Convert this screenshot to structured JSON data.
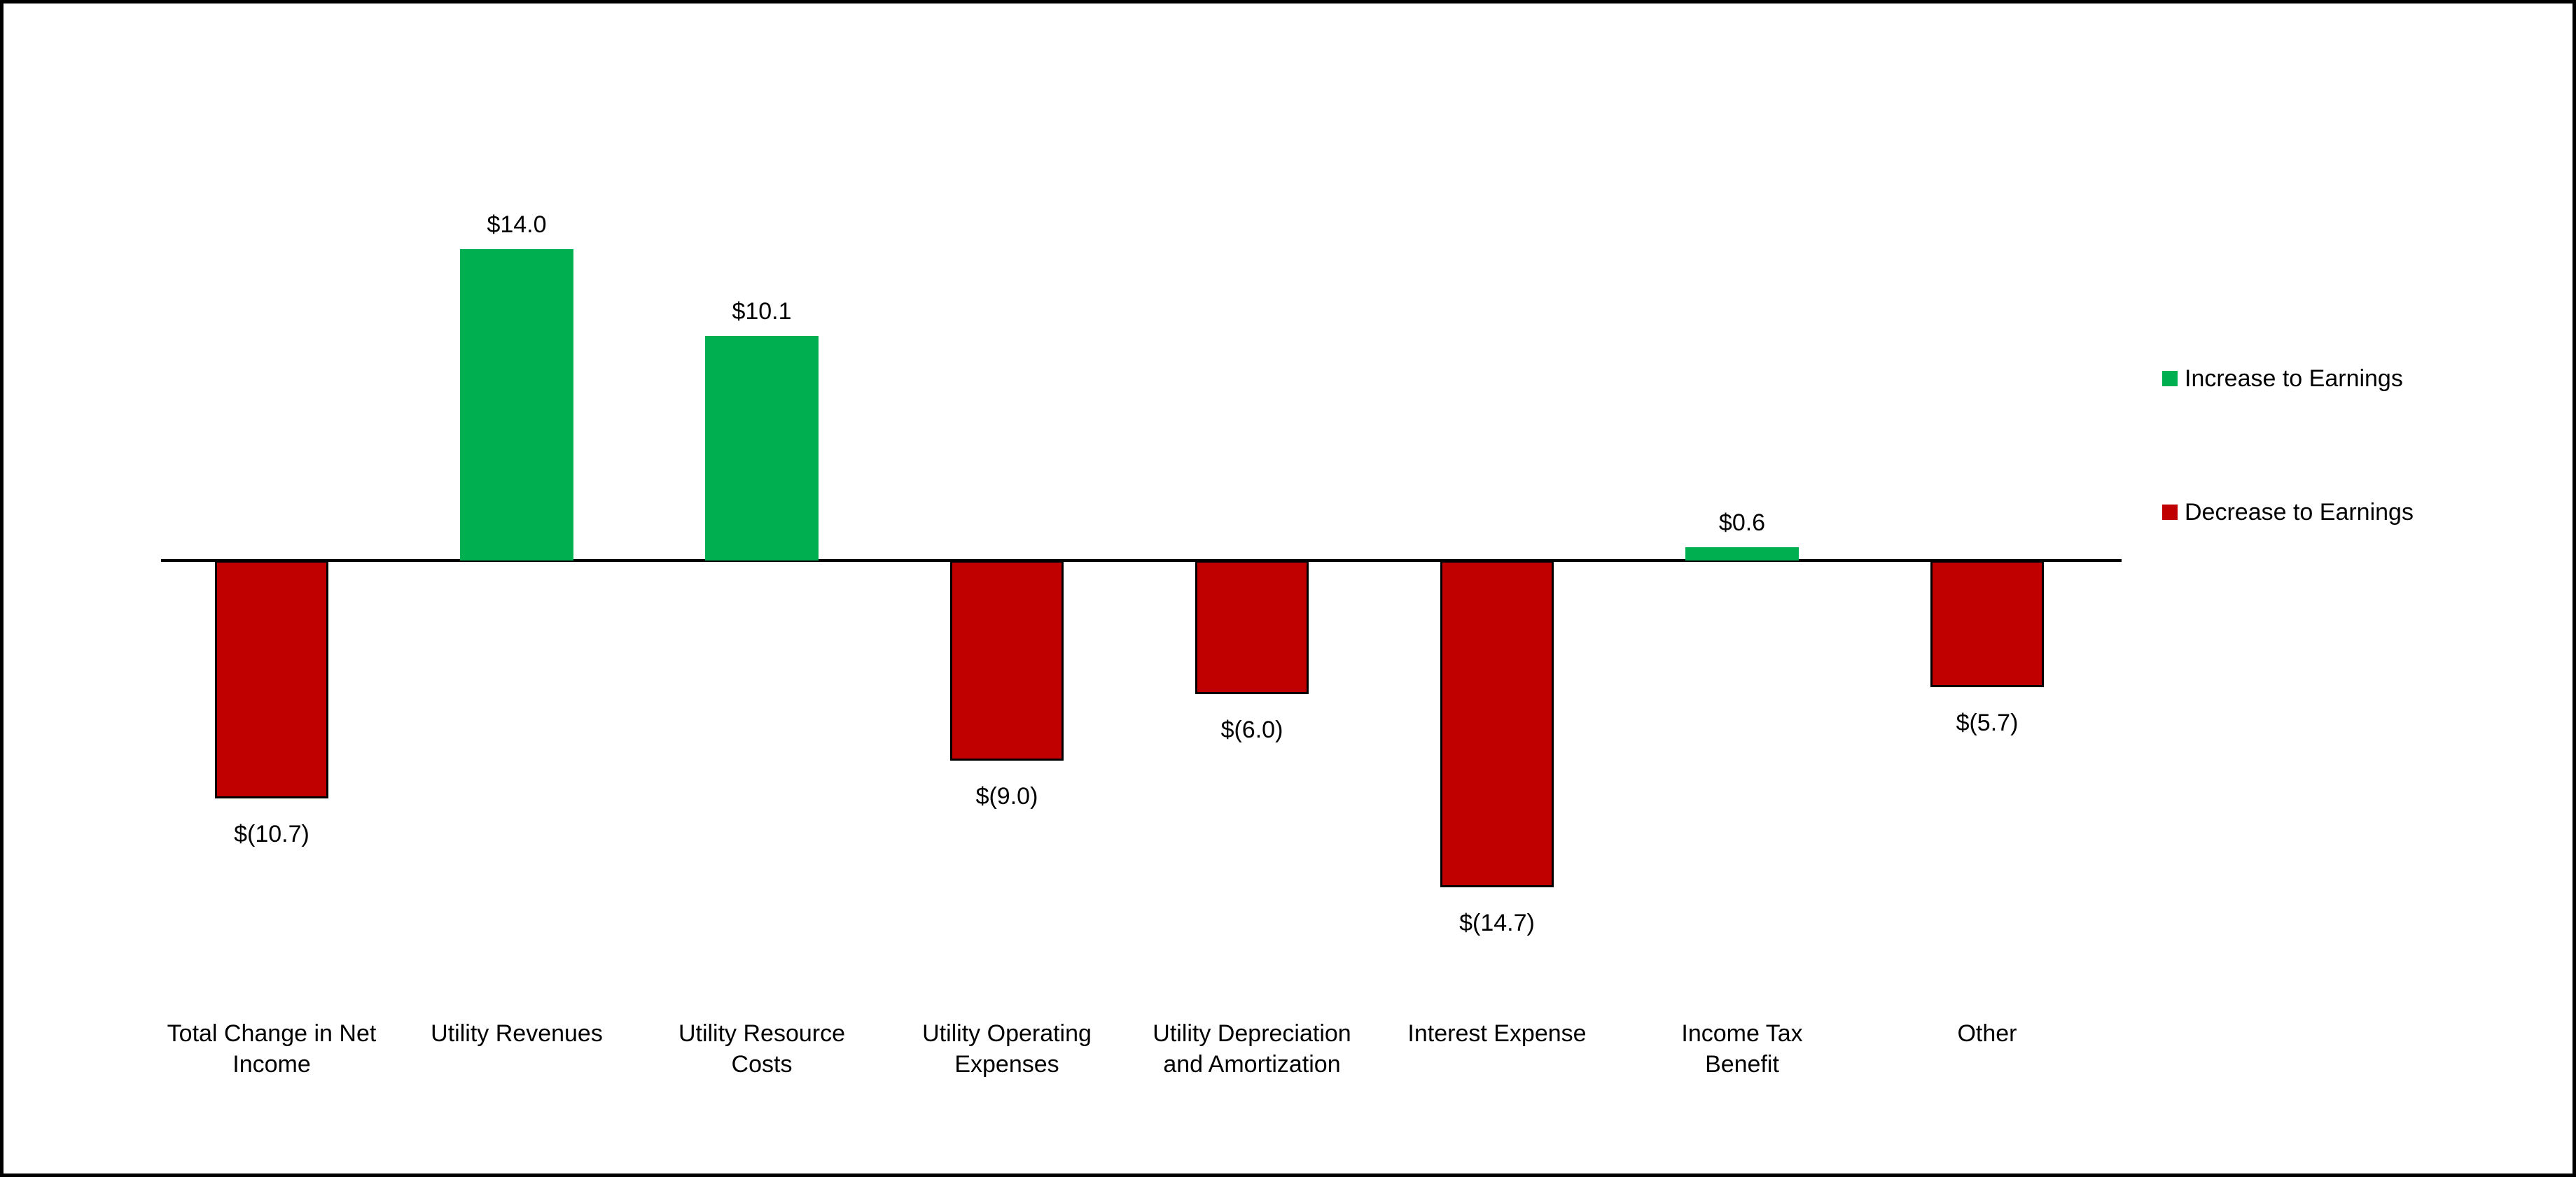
{
  "chart_data": {
    "type": "bar",
    "categories": [
      "Total Change in Net\nIncome",
      "Utility Revenues",
      "Utility Resource\nCosts",
      "Utility Operating\nExpenses",
      "Utility Depreciation\nand Amortization",
      "Interest Expense",
      "Income Tax\nBenefit",
      "Other"
    ],
    "values": [
      -10.7,
      14.0,
      10.1,
      -9.0,
      -6.0,
      -14.7,
      0.6,
      -5.7
    ],
    "data_labels": [
      "$(10.7)",
      "$14.0",
      "$10.1",
      "$(9.0)",
      "$(6.0)",
      "$(14.7)",
      "$0.6",
      "$(5.7)"
    ],
    "title": "",
    "xlabel": "",
    "ylabel": "",
    "ylim": [
      -16,
      15
    ],
    "grid": false,
    "y_axis_visible": false,
    "baseline_value": 0,
    "legend_position": "right",
    "colors": {
      "increase": "#00B050",
      "decrease": "#C00000",
      "decrease_border": "#000000",
      "axis": "#000000",
      "text": "#000000"
    },
    "legend": [
      {
        "label": "Increase to Earnings",
        "color": "#00B050"
      },
      {
        "label": "Decrease to Earnings",
        "color": "#C00000"
      }
    ]
  }
}
